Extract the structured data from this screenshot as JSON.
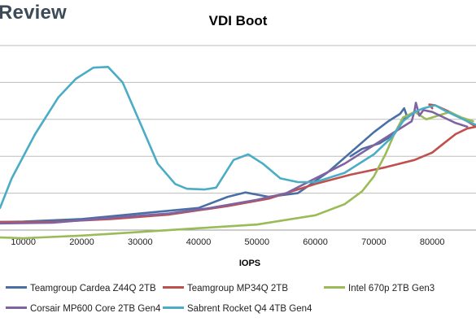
{
  "brand": {
    "text": "Review"
  },
  "chart_data": {
    "type": "line",
    "title": "VDI Boot",
    "xlabel": "IOPS",
    "ylabel": "",
    "xlim": [
      6000,
      87500
    ],
    "ylim": [
      0,
      5
    ],
    "x_ticks": [
      10000,
      20000,
      30000,
      40000,
      50000,
      60000,
      70000,
      80000
    ],
    "x_tick_labels": [
      "10000",
      "20000",
      "30000",
      "40000",
      "50000",
      "60000",
      "70000",
      "80000"
    ],
    "y_gridlines": [
      0,
      1,
      2,
      3,
      4,
      5
    ],
    "grid": true,
    "legend_position": "bottom",
    "series": [
      {
        "name": "Teamgroup Cardea Z44Q 2TB",
        "color": "#4a6fa5",
        "points": [
          [
            6000,
            0.22
          ],
          [
            10000,
            0.23
          ],
          [
            20000,
            0.3
          ],
          [
            30000,
            0.45
          ],
          [
            40000,
            0.6
          ],
          [
            45000,
            0.9
          ],
          [
            48000,
            1.02
          ],
          [
            52000,
            0.9
          ],
          [
            57000,
            1.0
          ],
          [
            62000,
            1.55
          ],
          [
            66000,
            2.1
          ],
          [
            70000,
            2.65
          ],
          [
            72500,
            2.95
          ],
          [
            74500,
            3.15
          ],
          [
            75200,
            3.3
          ],
          [
            75600,
            3.12
          ],
          [
            74800,
            2.9
          ],
          [
            73500,
            2.6
          ],
          [
            71000,
            2.35
          ],
          [
            68000,
            2.2
          ],
          [
            66000,
            2.0
          ]
        ]
      },
      {
        "name": "Teamgroup MP34Q 2TB",
        "color": "#c0504d",
        "points": [
          [
            6000,
            0.22
          ],
          [
            15000,
            0.22
          ],
          [
            25000,
            0.3
          ],
          [
            35000,
            0.42
          ],
          [
            45000,
            0.65
          ],
          [
            52000,
            0.85
          ],
          [
            60000,
            1.25
          ],
          [
            66000,
            1.5
          ],
          [
            72000,
            1.7
          ],
          [
            77000,
            1.9
          ],
          [
            80000,
            2.1
          ],
          [
            82000,
            2.35
          ],
          [
            84000,
            2.6
          ],
          [
            86000,
            2.75
          ],
          [
            87500,
            2.8
          ],
          [
            86000,
            2.95
          ],
          [
            83000,
            3.2
          ],
          [
            80500,
            3.38
          ],
          [
            79500,
            3.4
          ],
          [
            80000,
            3.3
          ]
        ]
      },
      {
        "name": "Intel 670p 2TB Gen3",
        "color": "#9bbb59",
        "points": [
          [
            6000,
            -0.2
          ],
          [
            10000,
            -0.22
          ],
          [
            20000,
            -0.15
          ],
          [
            30000,
            -0.05
          ],
          [
            40000,
            0.05
          ],
          [
            50000,
            0.15
          ],
          [
            60000,
            0.4
          ],
          [
            65000,
            0.7
          ],
          [
            68000,
            1.05
          ],
          [
            70000,
            1.45
          ],
          [
            72000,
            2.05
          ],
          [
            73500,
            2.6
          ],
          [
            75000,
            3.05
          ],
          [
            77000,
            3.2
          ],
          [
            79000,
            3.0
          ],
          [
            81000,
            3.1
          ],
          [
            83000,
            3.2
          ],
          [
            85000,
            3.05
          ],
          [
            87000,
            2.95
          ]
        ]
      },
      {
        "name": "Corsair MP600 Core 2TB Gen4",
        "color": "#8064a2",
        "points": [
          [
            6000,
            0.18
          ],
          [
            15000,
            0.2
          ],
          [
            25000,
            0.33
          ],
          [
            35000,
            0.45
          ],
          [
            42000,
            0.6
          ],
          [
            50000,
            0.82
          ],
          [
            55000,
            1.0
          ],
          [
            60000,
            1.4
          ],
          [
            65000,
            1.8
          ],
          [
            70000,
            2.3
          ],
          [
            74000,
            2.7
          ],
          [
            76500,
            2.95
          ],
          [
            77000,
            3.25
          ],
          [
            77200,
            3.45
          ],
          [
            77800,
            3.1
          ],
          [
            78500,
            3.25
          ],
          [
            80000,
            3.2
          ],
          [
            82000,
            3.05
          ],
          [
            84000,
            2.9
          ],
          [
            86000,
            2.8
          ]
        ]
      },
      {
        "name": "Sabrent Rocket Q4 4TB Gen4",
        "color": "#4bacc6",
        "points": [
          [
            6000,
            0.6
          ],
          [
            8000,
            1.4
          ],
          [
            12000,
            2.6
          ],
          [
            16000,
            3.6
          ],
          [
            19000,
            4.1
          ],
          [
            22000,
            4.4
          ],
          [
            24500,
            4.42
          ],
          [
            27000,
            4.0
          ],
          [
            30000,
            2.9
          ],
          [
            33000,
            1.8
          ],
          [
            36000,
            1.25
          ],
          [
            38000,
            1.12
          ],
          [
            41000,
            1.1
          ],
          [
            43000,
            1.15
          ],
          [
            46000,
            1.9
          ],
          [
            48500,
            2.05
          ],
          [
            51000,
            1.8
          ],
          [
            54000,
            1.4
          ],
          [
            57000,
            1.3
          ],
          [
            60000,
            1.3
          ],
          [
            65000,
            1.55
          ],
          [
            70000,
            2.05
          ],
          [
            73000,
            2.5
          ],
          [
            75000,
            2.95
          ],
          [
            77000,
            3.2
          ],
          [
            78500,
            3.3
          ],
          [
            80500,
            3.38
          ],
          [
            82000,
            3.25
          ],
          [
            84000,
            3.1
          ],
          [
            86000,
            2.95
          ],
          [
            87500,
            2.85
          ]
        ]
      }
    ]
  }
}
